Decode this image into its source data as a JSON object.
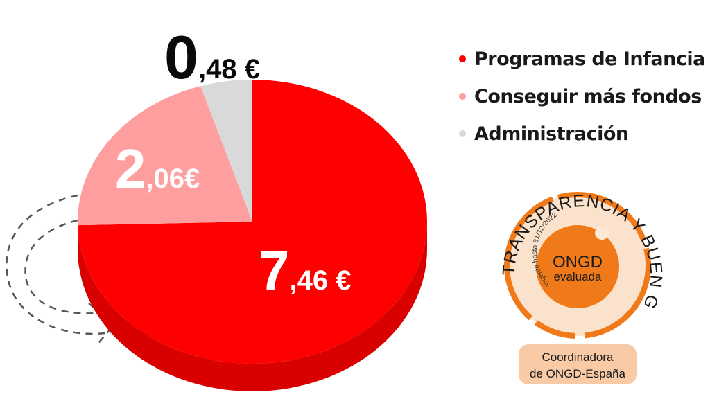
{
  "colors": {
    "programas": "#ff0000",
    "conseguir": "#ff9e9e",
    "administracion": "#d9d9d9",
    "badge_orange": "#f07a1a",
    "badge_fill": "#f7c69e"
  },
  "chart_data": {
    "type": "pie",
    "title": "",
    "legend_position": "right",
    "slices": [
      {
        "name": "Programas de Infancia",
        "value": 7.46,
        "label_int": "7",
        "label_dec": ",46 €",
        "color": "#ff0000"
      },
      {
        "name": "Conseguir más fondos",
        "value": 2.06,
        "label_int": "2",
        "label_dec": ",06€",
        "color": "#ff9e9e"
      },
      {
        "name": "Administración",
        "value": 0.48,
        "label_int": "0",
        "label_dec": ",48 €",
        "color": "#d9d9d9"
      }
    ]
  },
  "badge": {
    "arc_text": "TRANSPARENCIA Y BUEN GOBIERNO",
    "validity": "Vigente hasta 31/12/2022",
    "center_line1": "ONGD",
    "center_line2": "evaluada",
    "footer_line1": "Coordinadora",
    "footer_line2": "de ONGD-España"
  }
}
